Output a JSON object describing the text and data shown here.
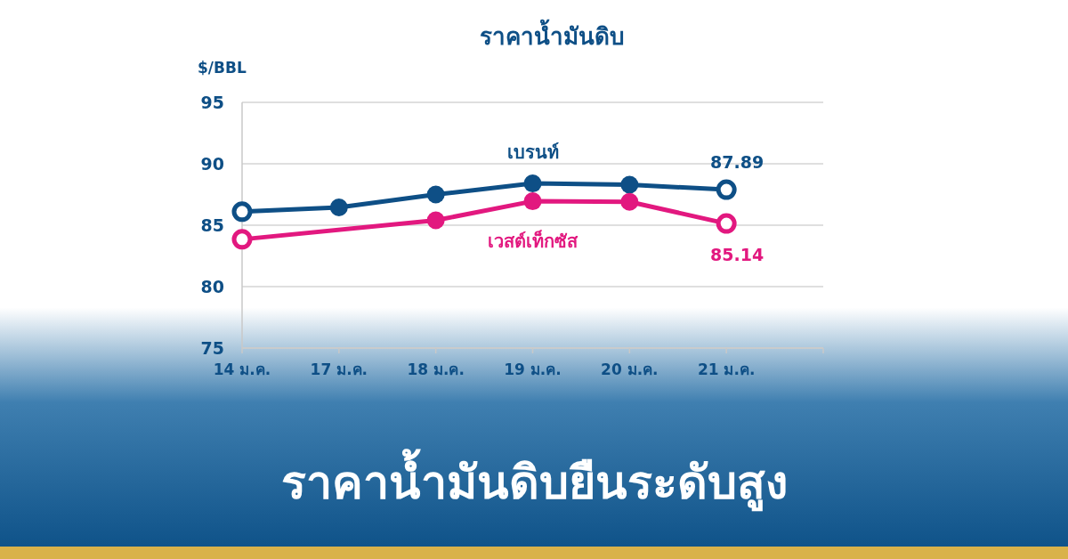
{
  "chart_data": {
    "type": "line",
    "title": "ราคาน้ำมันดิบ",
    "ylabel": "$/BBL",
    "annotations": [
      "ราคาน้ำมันดิบยืนระดับสูง"
    ],
    "categories": [
      "14 ม.ค.",
      "17 ม.ค.",
      "18 ม.ค.",
      "19 ม.ค.",
      "20 ม.ค.",
      "21 ม.ค."
    ],
    "series": [
      {
        "name": "เบรนท์",
        "color": "#0e4f86",
        "values": [
          86.1,
          86.45,
          87.5,
          88.4,
          88.3,
          87.89
        ],
        "value_labels": [
          null,
          null,
          null,
          null,
          null,
          "87.89"
        ]
      },
      {
        "name": "เวสต์เท็กซัส",
        "color": "#e2187f",
        "values": [
          83.85,
          null,
          85.4,
          86.95,
          86.9,
          85.14
        ],
        "value_labels": [
          null,
          null,
          null,
          null,
          null,
          "85.14"
        ]
      }
    ],
    "ylim": [
      75,
      95
    ],
    "yticks": [
      75,
      80,
      85,
      90,
      95
    ],
    "grid": "y",
    "marker": "circle",
    "line_style": "solid"
  }
}
